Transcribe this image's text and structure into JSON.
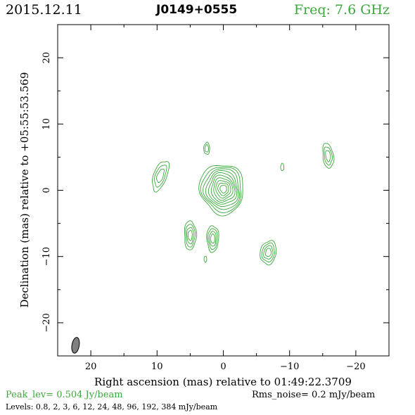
{
  "header": {
    "date": "2015.12.11",
    "source": "J0149+0555",
    "freq": "Freq: 7.6 GHz"
  },
  "footer": {
    "peak": "Peak_lev=  0.504 Jy/beam",
    "rms": "Rms_noise=  0.2 mJy/beam",
    "levels": "Levels: 0.8,  2,  3,  6,  12,  24,  48,  96, 192, 384 mJy/beam"
  },
  "colors": {
    "contour": "#3aa83a",
    "beam": "#808080",
    "text_accent": "#3aa83a"
  },
  "chart_data": {
    "type": "contour",
    "xlabel": "Right ascension (mas) relative to 01:49:22.3709",
    "ylabel": "Declination (mas) relative to +05:55:53.569",
    "xlim": [
      25,
      -25
    ],
    "ylim": [
      -25,
      25
    ],
    "xticks": [
      20,
      10,
      0,
      -10,
      -20
    ],
    "xtick_labels": [
      "20",
      "10",
      "0",
      "−10",
      "−20"
    ],
    "yticks": [
      20,
      10,
      0,
      -10,
      -20
    ],
    "ytick_labels": [
      "20",
      "10",
      "0",
      "−10",
      "−20"
    ],
    "grid": false,
    "levels_mJy": [
      0.8,
      2,
      3,
      6,
      12,
      24,
      48,
      96,
      192,
      384
    ],
    "beam": {
      "x": 22.3,
      "y": -23.4,
      "major": 2.4,
      "minor": 1.1,
      "pa_deg": 10
    },
    "components": [
      {
        "name": "core",
        "x": 0.2,
        "y": 0.2,
        "rx": 3.3,
        "ry": 3.8,
        "angle": -10,
        "nlev": 10
      },
      {
        "name": "knot-nw",
        "x": 9.5,
        "y": 2.2,
        "rx": 1.0,
        "ry": 2.4,
        "angle": 20,
        "nlev": 3
      },
      {
        "name": "knot-n",
        "x": 2.5,
        "y": 6.3,
        "rx": 0.45,
        "ry": 0.9,
        "angle": 0,
        "nlev": 2
      },
      {
        "name": "knot-e",
        "x": -8.9,
        "y": 3.5,
        "rx": 0.25,
        "ry": 0.55,
        "angle": 0,
        "nlev": 1
      },
      {
        "name": "knot-ne",
        "x": -15.8,
        "y": 5.2,
        "rx": 0.8,
        "ry": 1.9,
        "angle": -8,
        "nlev": 3
      },
      {
        "name": "knot-sw",
        "x": 5.0,
        "y": -6.8,
        "rx": 0.9,
        "ry": 2.2,
        "angle": 0,
        "nlev": 4
      },
      {
        "name": "knot-s",
        "x": 1.6,
        "y": -7.3,
        "rx": 0.9,
        "ry": 2.0,
        "angle": 0,
        "nlev": 4
      },
      {
        "name": "knot-ss",
        "x": 2.7,
        "y": -10.4,
        "rx": 0.2,
        "ry": 0.45,
        "angle": 0,
        "nlev": 1
      },
      {
        "name": "knot-se",
        "x": -6.8,
        "y": -9.4,
        "rx": 1.2,
        "ry": 1.8,
        "angle": 10,
        "nlev": 4
      }
    ]
  }
}
